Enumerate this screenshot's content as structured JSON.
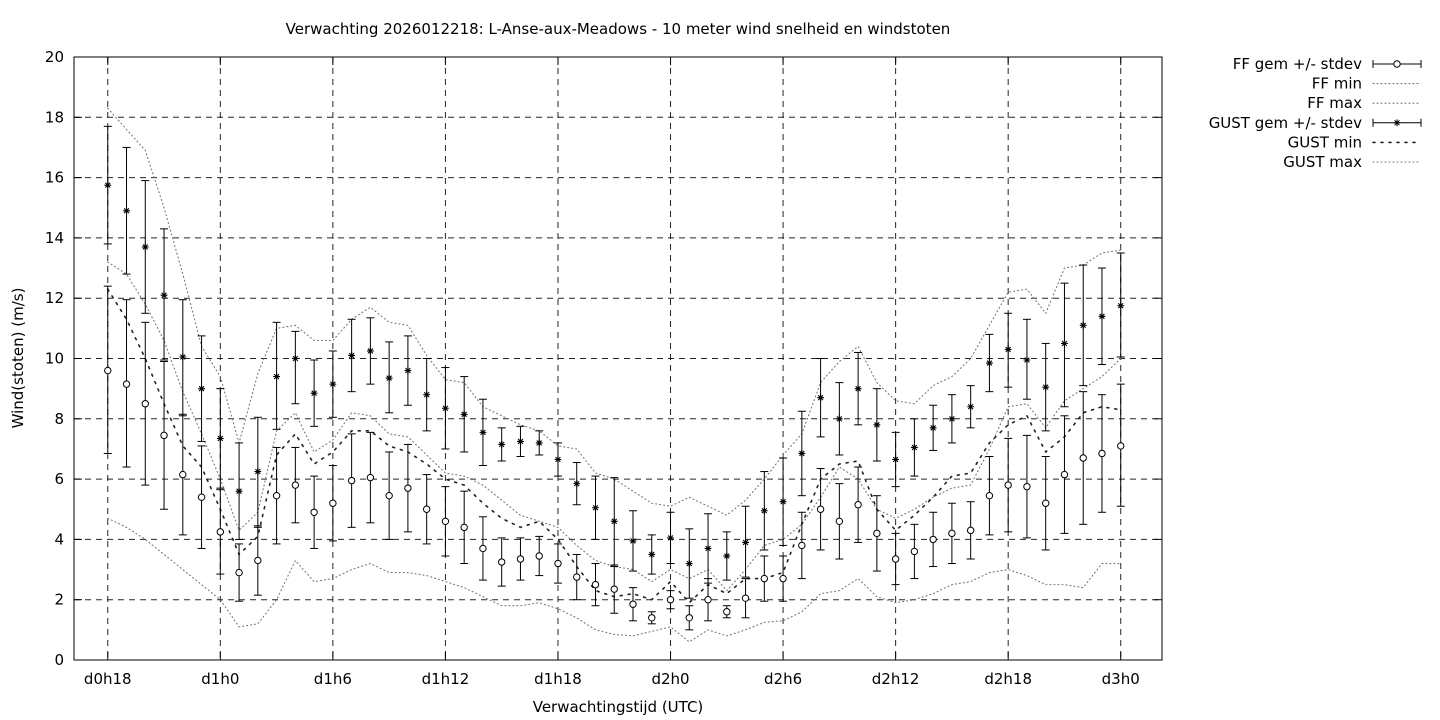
{
  "chart_data": {
    "type": "scatter",
    "title": "Verwachting 2026012218: L-Anse-aux-Meadows - 10 meter wind snelheid en windstoten",
    "xlabel": "Verwachtingstijd (UTC)",
    "ylabel": "Wind(stoten) (m/s)",
    "x_ticks": [
      {
        "label": "d0h18",
        "h": 0
      },
      {
        "label": "d1h0",
        "h": 6
      },
      {
        "label": "d1h6",
        "h": 12
      },
      {
        "label": "d1h12",
        "h": 18
      },
      {
        "label": "d1h18",
        "h": 24
      },
      {
        "label": "d2h0",
        "h": 30
      },
      {
        "label": "d2h6",
        "h": 36
      },
      {
        "label": "d2h12",
        "h": 42
      },
      {
        "label": "d2h18",
        "h": 48
      },
      {
        "label": "d3h0",
        "h": 54
      }
    ],
    "xlim": [
      -1.8,
      56.2
    ],
    "ylim": [
      0,
      20
    ],
    "y_ticks": [
      0,
      2,
      4,
      6,
      8,
      10,
      12,
      14,
      16,
      18,
      20
    ],
    "grid": true,
    "legend_position": "outside-top-right",
    "x": [
      0,
      1,
      2,
      3,
      4,
      5,
      6,
      7,
      8,
      9,
      10,
      11,
      12,
      13,
      14,
      15,
      16,
      17,
      18,
      19,
      20,
      21,
      22,
      23,
      24,
      25,
      26,
      27,
      28,
      29,
      30,
      31,
      32,
      33,
      34,
      35,
      36,
      37,
      38,
      39,
      40,
      41,
      42,
      43,
      44,
      45,
      46,
      47,
      48,
      49,
      50,
      51,
      52,
      53,
      54
    ],
    "series": [
      {
        "name": "FF gem +/- stdev",
        "style": "open-circle-errorbar",
        "mean": [
          9.6,
          9.15,
          8.5,
          7.45,
          6.15,
          5.4,
          4.25,
          2.9,
          3.3,
          5.45,
          5.8,
          4.9,
          5.2,
          5.95,
          6.05,
          5.45,
          5.7,
          5.0,
          4.6,
          4.4,
          3.7,
          3.25,
          3.35,
          3.45,
          3.2,
          2.75,
          2.5,
          2.35,
          1.85,
          1.4,
          2.0,
          1.4,
          2.0,
          1.6,
          2.05,
          2.7,
          2.7,
          3.8,
          5.0,
          4.6,
          5.15,
          4.2,
          3.35,
          3.6,
          4.0,
          4.2,
          4.3,
          5.45,
          5.8,
          5.75,
          5.2,
          6.15,
          6.7,
          6.85,
          7.1
        ],
        "low": [
          6.85,
          6.4,
          5.8,
          5.0,
          4.15,
          3.7,
          2.85,
          1.95,
          2.15,
          3.85,
          4.55,
          3.7,
          3.95,
          4.4,
          4.55,
          4.0,
          4.25,
          3.85,
          3.45,
          3.2,
          2.65,
          2.45,
          2.65,
          2.8,
          2.55,
          2.0,
          1.8,
          1.55,
          1.3,
          1.2,
          1.7,
          1.0,
          1.3,
          1.4,
          1.4,
          1.95,
          1.95,
          2.7,
          3.65,
          3.35,
          3.9,
          2.95,
          2.5,
          2.7,
          3.1,
          3.2,
          3.35,
          4.15,
          4.25,
          4.05,
          3.65,
          4.2,
          4.5,
          4.9,
          5.1
        ],
        "high": [
          12.4,
          11.95,
          11.2,
          9.9,
          8.15,
          7.1,
          5.65,
          3.85,
          4.45,
          7.05,
          7.05,
          6.1,
          6.45,
          7.5,
          7.55,
          6.9,
          7.15,
          6.15,
          5.75,
          5.6,
          4.75,
          4.05,
          4.05,
          4.1,
          3.85,
          3.5,
          3.2,
          3.15,
          2.4,
          1.6,
          2.3,
          1.8,
          2.7,
          1.8,
          2.7,
          3.45,
          3.45,
          4.9,
          6.35,
          5.85,
          6.4,
          5.45,
          4.2,
          4.5,
          4.9,
          5.2,
          5.25,
          6.75,
          7.35,
          7.45,
          6.75,
          8.1,
          8.9,
          8.8,
          9.15
        ]
      },
      {
        "name": "FF min",
        "style": "dotted",
        "values": [
          4.7,
          4.4,
          4.0,
          3.5,
          3.0,
          2.5,
          2.0,
          1.1,
          1.2,
          2.0,
          3.3,
          2.6,
          2.7,
          3.0,
          3.2,
          2.9,
          2.9,
          2.8,
          2.6,
          2.4,
          2.1,
          1.8,
          1.8,
          1.9,
          1.7,
          1.4,
          1.0,
          0.85,
          0.8,
          0.95,
          1.1,
          0.6,
          1.0,
          0.8,
          1.0,
          1.25,
          1.3,
          1.6,
          2.2,
          2.3,
          2.7,
          2.1,
          1.9,
          2.0,
          2.2,
          2.5,
          2.6,
          2.9,
          3.0,
          2.8,
          2.5,
          2.5,
          2.4,
          3.2,
          3.2
        ]
      },
      {
        "name": "FF max",
        "style": "dotted",
        "values": [
          13.2,
          12.8,
          11.8,
          10.6,
          8.9,
          7.5,
          6.0,
          4.3,
          4.9,
          7.6,
          8.2,
          6.9,
          7.3,
          8.2,
          8.1,
          7.5,
          7.4,
          6.8,
          6.2,
          6.1,
          5.8,
          5.3,
          4.8,
          4.6,
          4.4,
          3.8,
          3.3,
          3.1,
          3.0,
          2.6,
          3.0,
          2.7,
          3.0,
          2.3,
          3.0,
          3.8,
          4.0,
          4.5,
          5.4,
          6.4,
          6.0,
          5.0,
          4.7,
          5.0,
          5.4,
          5.7,
          5.8,
          7.0,
          8.4,
          8.5,
          7.7,
          8.6,
          9.0,
          9.4,
          10.0
        ]
      },
      {
        "name": "GUST gem +/- stdev",
        "style": "star-errorbar",
        "mean": [
          15.75,
          14.9,
          13.7,
          12.1,
          10.05,
          9.0,
          7.35,
          5.6,
          6.25,
          9.4,
          10.0,
          8.85,
          9.15,
          10.1,
          10.25,
          9.35,
          9.6,
          8.8,
          8.35,
          8.15,
          7.55,
          7.15,
          7.25,
          7.2,
          6.65,
          5.85,
          5.05,
          4.6,
          3.95,
          3.5,
          4.05,
          3.2,
          3.7,
          3.45,
          3.9,
          4.95,
          5.25,
          6.85,
          8.7,
          8.0,
          9.0,
          7.8,
          6.65,
          7.05,
          7.7,
          8.0,
          8.4,
          9.85,
          10.3,
          9.95,
          9.05,
          10.5,
          11.1,
          11.4,
          11.75
        ],
        "low": [
          13.8,
          12.8,
          11.5,
          9.95,
          8.1,
          7.25,
          5.7,
          4.0,
          4.4,
          7.65,
          8.5,
          7.75,
          8.05,
          8.9,
          9.15,
          8.2,
          8.45,
          7.6,
          7.0,
          6.9,
          6.45,
          6.6,
          6.75,
          6.8,
          6.1,
          5.15,
          4.0,
          3.1,
          2.95,
          2.85,
          3.2,
          2.05,
          2.55,
          2.65,
          2.75,
          3.65,
          3.8,
          5.45,
          7.4,
          6.8,
          7.8,
          6.6,
          5.75,
          6.1,
          6.95,
          7.2,
          7.7,
          8.9,
          9.05,
          8.65,
          7.6,
          8.4,
          9.1,
          9.8,
          10.05
        ],
        "high": [
          17.7,
          17.0,
          15.9,
          14.3,
          11.95,
          10.75,
          9.0,
          7.2,
          8.05,
          11.2,
          10.9,
          9.95,
          10.25,
          11.3,
          11.35,
          10.55,
          10.75,
          10.0,
          9.7,
          9.4,
          8.65,
          7.7,
          7.75,
          7.6,
          7.2,
          6.55,
          6.1,
          6.05,
          4.95,
          4.15,
          4.9,
          4.35,
          4.85,
          4.25,
          5.1,
          6.25,
          6.7,
          8.25,
          10.0,
          9.2,
          10.2,
          9.0,
          7.55,
          8.0,
          8.45,
          8.8,
          9.1,
          10.8,
          11.5,
          11.3,
          10.5,
          12.5,
          13.1,
          13.0,
          13.5
        ]
      },
      {
        "name": "GUST min",
        "style": "sparse-dotted",
        "values": [
          12.3,
          11.3,
          10.0,
          8.5,
          7.1,
          6.4,
          5.0,
          3.5,
          4.1,
          6.8,
          7.5,
          6.5,
          6.9,
          7.6,
          7.6,
          7.1,
          6.9,
          6.5,
          6.0,
          5.8,
          5.2,
          4.7,
          4.4,
          4.6,
          4.0,
          3.1,
          2.3,
          2.1,
          2.2,
          2.0,
          2.6,
          1.9,
          2.5,
          2.2,
          2.7,
          2.7,
          2.9,
          4.5,
          6.0,
          6.5,
          6.6,
          5.0,
          4.3,
          4.8,
          5.4,
          6.1,
          6.2,
          7.2,
          7.8,
          8.1,
          6.9,
          7.4,
          8.2,
          8.4,
          8.3
        ]
      },
      {
        "name": "GUST max",
        "style": "dotted",
        "values": [
          18.3,
          17.6,
          16.9,
          15.0,
          12.8,
          10.4,
          9.4,
          7.2,
          9.5,
          11.0,
          11.1,
          10.6,
          10.6,
          11.3,
          11.7,
          11.2,
          11.1,
          10.1,
          9.3,
          9.2,
          8.4,
          8.1,
          7.8,
          7.6,
          7.1,
          7.0,
          6.2,
          6.0,
          5.6,
          5.2,
          5.1,
          5.4,
          5.1,
          4.8,
          5.3,
          6.0,
          6.8,
          7.5,
          9.2,
          9.9,
          10.4,
          9.2,
          8.6,
          8.5,
          9.1,
          9.4,
          10.0,
          11.1,
          12.2,
          12.3,
          11.5,
          13.0,
          13.1,
          13.5,
          13.6
        ]
      }
    ]
  }
}
